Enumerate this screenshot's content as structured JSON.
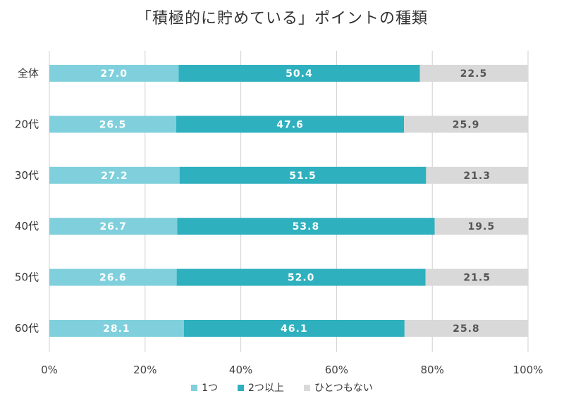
{
  "chart_data": {
    "type": "bar",
    "orientation": "horizontal",
    "stacked": true,
    "title": "「積極的に貯めている」ポイントの種類",
    "categories": [
      "全体",
      "20代",
      "30代",
      "40代",
      "50代",
      "60代"
    ],
    "series": [
      {
        "name": "1つ",
        "color": "#7fd0dc",
        "label_color": "#ffffff",
        "values": [
          27.0,
          26.5,
          27.2,
          26.7,
          26.6,
          28.1
        ]
      },
      {
        "name": "2つ以上",
        "color": "#2fb0be",
        "label_color": "#ffffff",
        "values": [
          50.4,
          47.6,
          51.5,
          53.8,
          52.0,
          46.1
        ]
      },
      {
        "name": "ひとつもない",
        "color": "#d9d9d9",
        "label_color": "#555555",
        "values": [
          22.5,
          25.9,
          21.3,
          19.5,
          21.5,
          25.8
        ]
      }
    ],
    "xlim": [
      0,
      100
    ],
    "xticks": [
      "0%",
      "20%",
      "40%",
      "60%",
      "80%",
      "100%"
    ],
    "grid": true,
    "legend_position": "bottom"
  }
}
